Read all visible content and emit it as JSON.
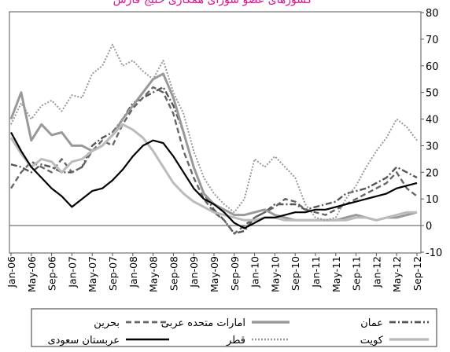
{
  "chart_data": {
    "type": "line",
    "title": "کشورهای عضو شورای همکاری خلیج فارس",
    "categories": [
      "Jan-06",
      null,
      "May-06",
      null,
      "Sep-06",
      null,
      "Jan-07",
      null,
      "May-07",
      null,
      "Sep-07",
      null,
      "Jan-08",
      null,
      "May-08",
      null,
      "Sep-08",
      null,
      "Jan-09",
      null,
      "May-09",
      null,
      "Sep-09",
      null,
      "Jan-10",
      null,
      "May-10",
      null,
      "Sep-10",
      null,
      "Jan-11",
      null,
      "May-11",
      null,
      "Sep-11",
      null,
      "Jan-12",
      null,
      "May-12",
      null,
      "Sep-12"
    ],
    "ylim": [
      -10,
      80
    ],
    "yticks": [
      -10,
      0,
      10,
      20,
      30,
      40,
      50,
      60,
      70,
      80
    ],
    "series": [
      {
        "name": "عمان",
        "color": "#555555",
        "style": "dashdot",
        "values": [
          23,
          22,
          20,
          23,
          22,
          20,
          20,
          22,
          30,
          33,
          35,
          40,
          46,
          48,
          50,
          52,
          45,
          35,
          22,
          12,
          6,
          2,
          -3,
          -2,
          3,
          5,
          8,
          8,
          8,
          6,
          7,
          8,
          9,
          12,
          13,
          14,
          16,
          18,
          22,
          20,
          18
        ]
      },
      {
        "name": "امارات متحده عربی",
        "color": "#999999",
        "style": "thick",
        "values": [
          40,
          50,
          32,
          38,
          34,
          35,
          30,
          30,
          28,
          30,
          34,
          40,
          45,
          50,
          55,
          57,
          48,
          35,
          22,
          12,
          8,
          6,
          4,
          4,
          5,
          6,
          4,
          3,
          2,
          2,
          2,
          2,
          2,
          3,
          4,
          3,
          2,
          3,
          3,
          4,
          5
        ]
      },
      {
        "name": "بحرین",
        "color": "#666666",
        "style": "dashed",
        "values": [
          14,
          20,
          24,
          22,
          20,
          25,
          20,
          22,
          28,
          32,
          30,
          38,
          44,
          48,
          52,
          50,
          42,
          28,
          18,
          10,
          5,
          2,
          -3,
          0,
          3,
          5,
          7,
          10,
          9,
          6,
          5,
          4,
          6,
          8,
          10,
          12,
          14,
          16,
          20,
          14,
          11
        ]
      },
      {
        "name": "کویت",
        "color": "#bbbbbb",
        "style": "thick",
        "values": [
          33,
          27,
          22,
          25,
          24,
          20,
          24,
          25,
          28,
          30,
          34,
          38,
          36,
          33,
          28,
          22,
          16,
          12,
          9,
          7,
          5,
          4,
          3,
          2,
          2,
          3,
          3,
          2,
          2,
          2,
          2,
          2,
          2,
          2,
          3,
          3,
          2,
          3,
          4,
          5,
          5
        ]
      },
      {
        "name": "قطر",
        "color": "#999999",
        "style": "dotted",
        "values": [
          38,
          46,
          40,
          45,
          47,
          43,
          49,
          48,
          57,
          60,
          68,
          60,
          62,
          58,
          55,
          62,
          50,
          42,
          28,
          18,
          12,
          8,
          5,
          10,
          25,
          22,
          26,
          22,
          18,
          8,
          3,
          2,
          3,
          10,
          15,
          22,
          28,
          33,
          40,
          37,
          32
        ]
      },
      {
        "name": "عربستان سعودی",
        "color": "#000000",
        "style": "solid",
        "values": [
          35,
          28,
          22,
          18,
          14,
          11,
          7,
          10,
          13,
          14,
          17,
          21,
          26,
          30,
          32,
          31,
          26,
          20,
          14,
          10,
          8,
          5,
          1,
          -1,
          1,
          3,
          3,
          4,
          5,
          5,
          6,
          6,
          7,
          8,
          9,
          10,
          11,
          12,
          14,
          15,
          16
        ]
      }
    ]
  }
}
